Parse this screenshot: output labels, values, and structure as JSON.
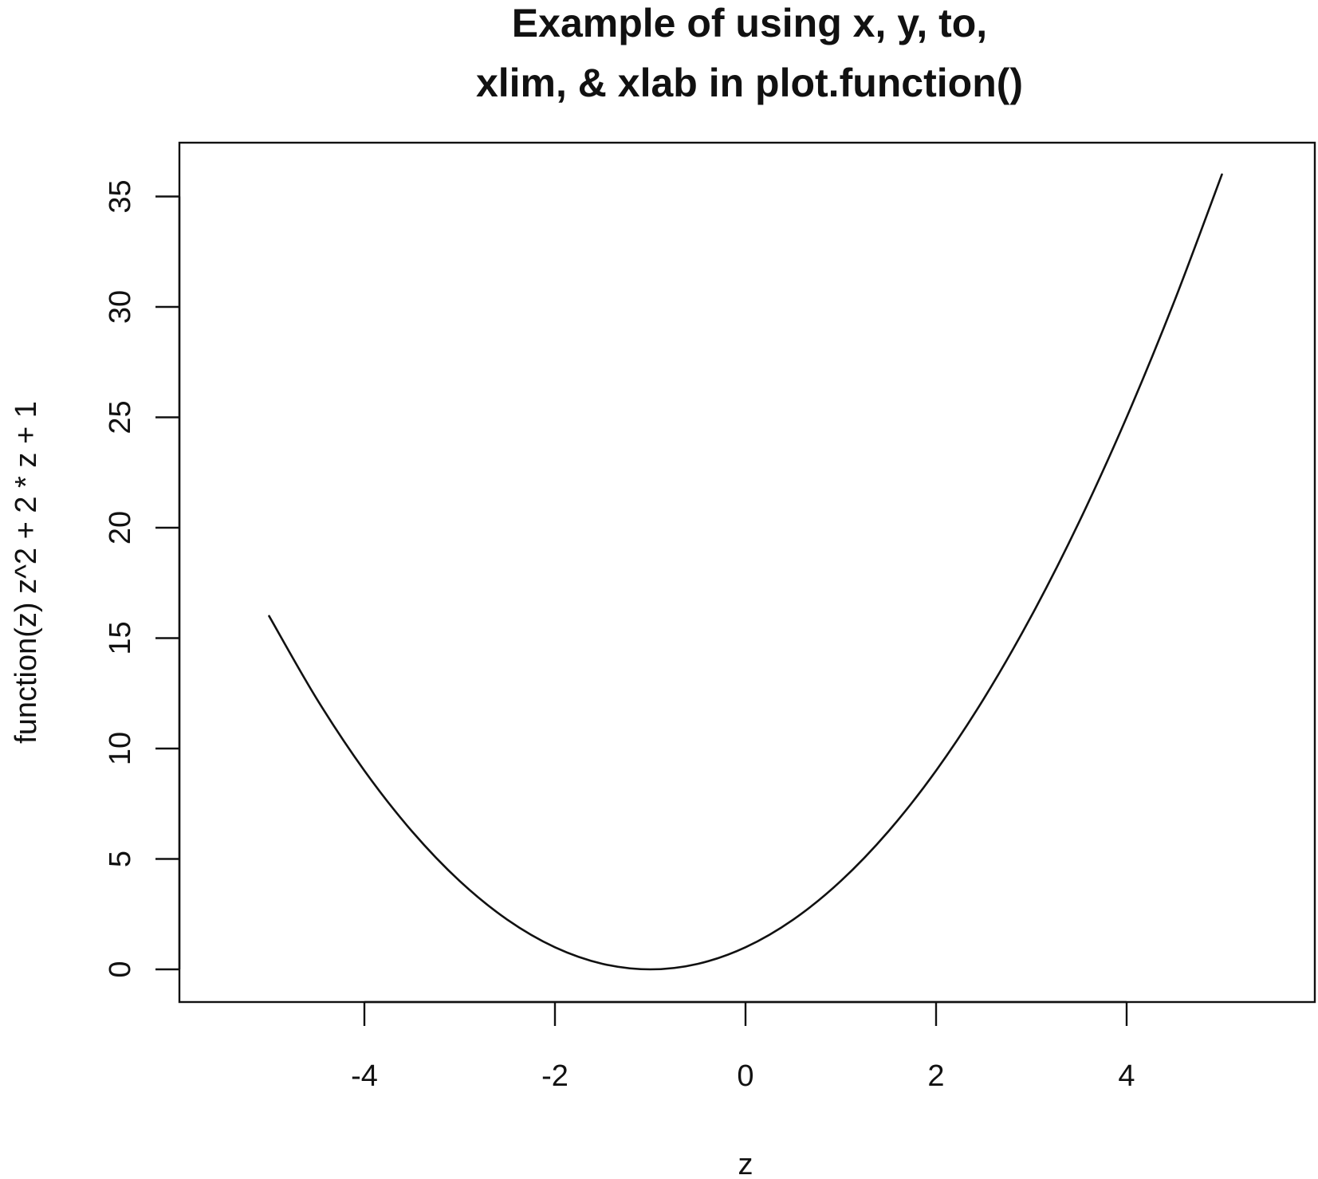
{
  "chart_data": {
    "type": "line",
    "title": [
      "Example of using x, y, to,",
      "xlim, & xlab in plot.function()"
    ],
    "xlabel": "z",
    "ylabel": "function(z) z^2 + 2 * z + 1",
    "xlim": [
      -5,
      5
    ],
    "ylim": [
      0,
      36
    ],
    "x_ticks": [
      -4,
      -2,
      0,
      2,
      4
    ],
    "y_ticks": [
      0,
      5,
      10,
      15,
      20,
      25,
      30,
      35
    ],
    "grid": false,
    "line_color": "#111111",
    "series": [
      {
        "x": [
          -5,
          -4.5,
          -4,
          -3.5,
          -3,
          -2.5,
          -2,
          -1.5,
          -1,
          -0.5,
          0,
          0.5,
          1,
          1.5,
          2,
          2.5,
          3,
          3.5,
          4,
          4.5,
          5
        ],
        "values": [
          16,
          12.25,
          9,
          6.25,
          4,
          2.25,
          1,
          0.25,
          0,
          0.25,
          1,
          2.25,
          4,
          6.25,
          9,
          12.25,
          16,
          20.25,
          25,
          30.25,
          36
        ]
      }
    ]
  }
}
